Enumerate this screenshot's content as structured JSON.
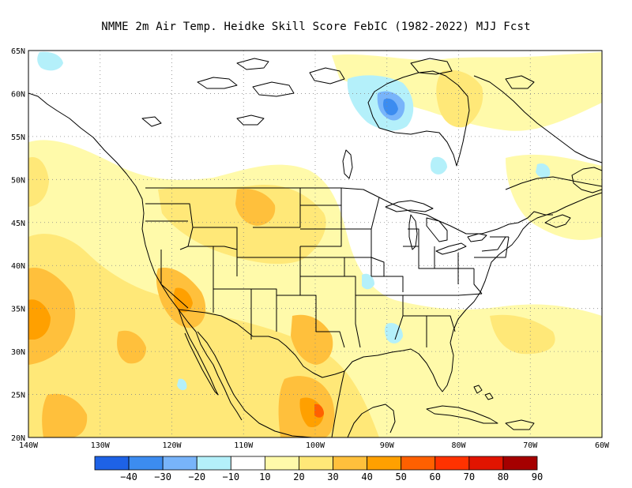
{
  "title": "NMME  2m Air Temp. Heidke Skill Score FebIC (1982-2022) MJJ Fcst",
  "map": {
    "lon_range": [
      -140,
      -60
    ],
    "lat_range": [
      20,
      65
    ],
    "lon_ticks": [
      "140W",
      "130W",
      "120W",
      "110W",
      "100W",
      "90W",
      "80W",
      "70W",
      "60W"
    ],
    "lat_ticks": [
      "65N",
      "60N",
      "55N",
      "50N",
      "45N",
      "40N",
      "35N",
      "30N",
      "25N",
      "20N"
    ],
    "grid": "dotted"
  },
  "colorbar": {
    "labels": [
      "−40",
      "−30",
      "−20",
      "−10",
      "10",
      "20",
      "30",
      "40",
      "50",
      "60",
      "70",
      "80",
      "90"
    ],
    "colors": [
      "#1e62e6",
      "#3c8cf0",
      "#78b4fa",
      "#b4f0fa",
      "#ffffff",
      "#fffaaa",
      "#ffe878",
      "#ffc03c",
      "#ffa000",
      "#ff6000",
      "#ff3200",
      "#e11400",
      "#a50000"
    ]
  },
  "shading": {
    "palette": {
      "b1": "#b4f0fa",
      "b2": "#78b4fa",
      "b3": "#3c8cf0",
      "y1": "#fffaaa",
      "y2": "#ffe878",
      "y3": "#ffc03c",
      "o1": "#ffa000",
      "o2": "#ff6000"
    }
  }
}
